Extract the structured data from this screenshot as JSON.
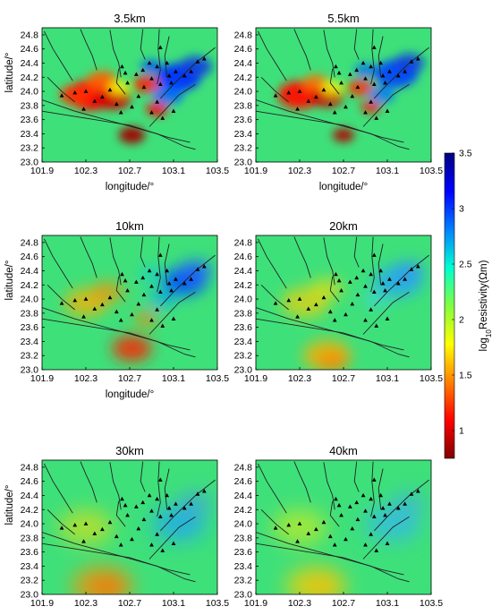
{
  "chart_data": {
    "type": "heatmap",
    "x_ticks": [
      "101.9",
      "102.3",
      "102.7",
      "103.1",
      "103.5"
    ],
    "y_ticks": [
      "23.0",
      "23.2",
      "23.4",
      "23.6",
      "23.8",
      "24.0",
      "24.2",
      "24.4",
      "24.6",
      "24.8"
    ],
    "xlim": [
      101.9,
      103.5
    ],
    "ylim": [
      23.0,
      24.9
    ],
    "xlabel": "longitude/°",
    "ylabel": "latitude/°",
    "colorbar": {
      "label_prefix": "log",
      "label_sub": "10",
      "label_suffix": "Resistivity(Ωm)",
      "ticks": [
        "1",
        "1.5",
        "2",
        "2.5",
        "3",
        "3.5"
      ],
      "range": [
        0.75,
        3.5
      ],
      "colormap": [
        "#800000",
        "#ff0000",
        "#ff8000",
        "#ffff00",
        "#80ff40",
        "#00ffd0",
        "#0080ff",
        "#0000ff",
        "#000080"
      ]
    },
    "panels": [
      {
        "title": "3.5km",
        "show_xlabel": true,
        "show_ylabel": true
      },
      {
        "title": "5.5km",
        "show_xlabel": true,
        "show_ylabel": false
      },
      {
        "title": "10km",
        "show_xlabel": true,
        "show_ylabel": true
      },
      {
        "title": "20km",
        "show_xlabel": false,
        "show_ylabel": false
      },
      {
        "title": "30km",
        "show_xlabel": false,
        "show_ylabel": true
      },
      {
        "title": "40km",
        "show_xlabel": false,
        "show_ylabel": false
      }
    ],
    "stations": [
      [
        102.08,
        23.94
      ],
      [
        102.2,
        23.98
      ],
      [
        102.3,
        24.0
      ],
      [
        102.38,
        23.86
      ],
      [
        102.28,
        23.75
      ],
      [
        102.45,
        23.92
      ],
      [
        102.52,
        24.02
      ],
      [
        102.58,
        23.82
      ],
      [
        102.66,
        24.26
      ],
      [
        102.63,
        24.35
      ],
      [
        102.76,
        24.24
      ],
      [
        102.82,
        24.3
      ],
      [
        102.88,
        24.4
      ],
      [
        102.95,
        24.35
      ],
      [
        102.98,
        24.62
      ],
      [
        102.83,
        24.06
      ],
      [
        102.78,
        23.93
      ],
      [
        102.72,
        23.78
      ],
      [
        102.62,
        23.7
      ],
      [
        102.9,
        24.18
      ],
      [
        102.98,
        24.1
      ],
      [
        103.06,
        24.22
      ],
      [
        103.04,
        24.4
      ],
      [
        103.12,
        24.28
      ],
      [
        103.08,
        24.12
      ],
      [
        103.2,
        24.22
      ],
      [
        103.26,
        24.28
      ],
      [
        103.32,
        24.42
      ],
      [
        103.38,
        24.46
      ],
      [
        102.95,
        23.85
      ],
      [
        102.9,
        23.7
      ],
      [
        103.0,
        23.62
      ],
      [
        103.1,
        23.72
      ],
      [
        102.68,
        24.12
      ]
    ],
    "faults": [
      [
        [
          101.92,
          24.85
        ],
        [
          102.0,
          24.6
        ],
        [
          102.1,
          24.35
        ],
        [
          102.18,
          24.15
        ]
      ],
      [
        [
          102.25,
          24.88
        ],
        [
          102.3,
          24.7
        ],
        [
          102.36,
          24.5
        ],
        [
          102.4,
          24.3
        ]
      ],
      [
        [
          102.52,
          24.87
        ],
        [
          102.55,
          24.6
        ],
        [
          102.6,
          24.4
        ],
        [
          102.62,
          24.2
        ]
      ],
      [
        [
          102.82,
          24.88
        ],
        [
          102.8,
          24.6
        ],
        [
          102.84,
          24.45
        ]
      ],
      [
        [
          102.97,
          24.88
        ],
        [
          102.96,
          24.6
        ],
        [
          102.98,
          24.3
        ],
        [
          102.95,
          24.1
        ]
      ],
      [
        [
          103.06,
          24.78
        ],
        [
          103.02,
          24.5
        ],
        [
          103.04,
          24.2
        ]
      ],
      [
        [
          103.48,
          24.62
        ],
        [
          103.3,
          24.4
        ],
        [
          103.1,
          24.1
        ],
        [
          102.98,
          23.9
        ]
      ],
      [
        [
          103.3,
          24.1
        ],
        [
          103.15,
          23.95
        ],
        [
          103.0,
          23.7
        ],
        [
          102.88,
          23.5
        ]
      ],
      [
        [
          101.9,
          23.88
        ],
        [
          102.2,
          23.72
        ],
        [
          102.6,
          23.55
        ],
        [
          102.95,
          23.4
        ],
        [
          103.2,
          23.22
        ],
        [
          103.3,
          23.18
        ]
      ],
      [
        [
          101.9,
          23.72
        ],
        [
          102.3,
          23.62
        ],
        [
          102.7,
          23.52
        ],
        [
          103.05,
          23.35
        ],
        [
          103.25,
          23.28
        ]
      ],
      [
        [
          102.6,
          24.32
        ],
        [
          102.58,
          24.12
        ],
        [
          102.66,
          23.96
        ]
      ],
      [
        [
          101.95,
          24.2
        ],
        [
          102.08,
          24.0
        ],
        [
          102.2,
          23.85
        ]
      ]
    ]
  }
}
